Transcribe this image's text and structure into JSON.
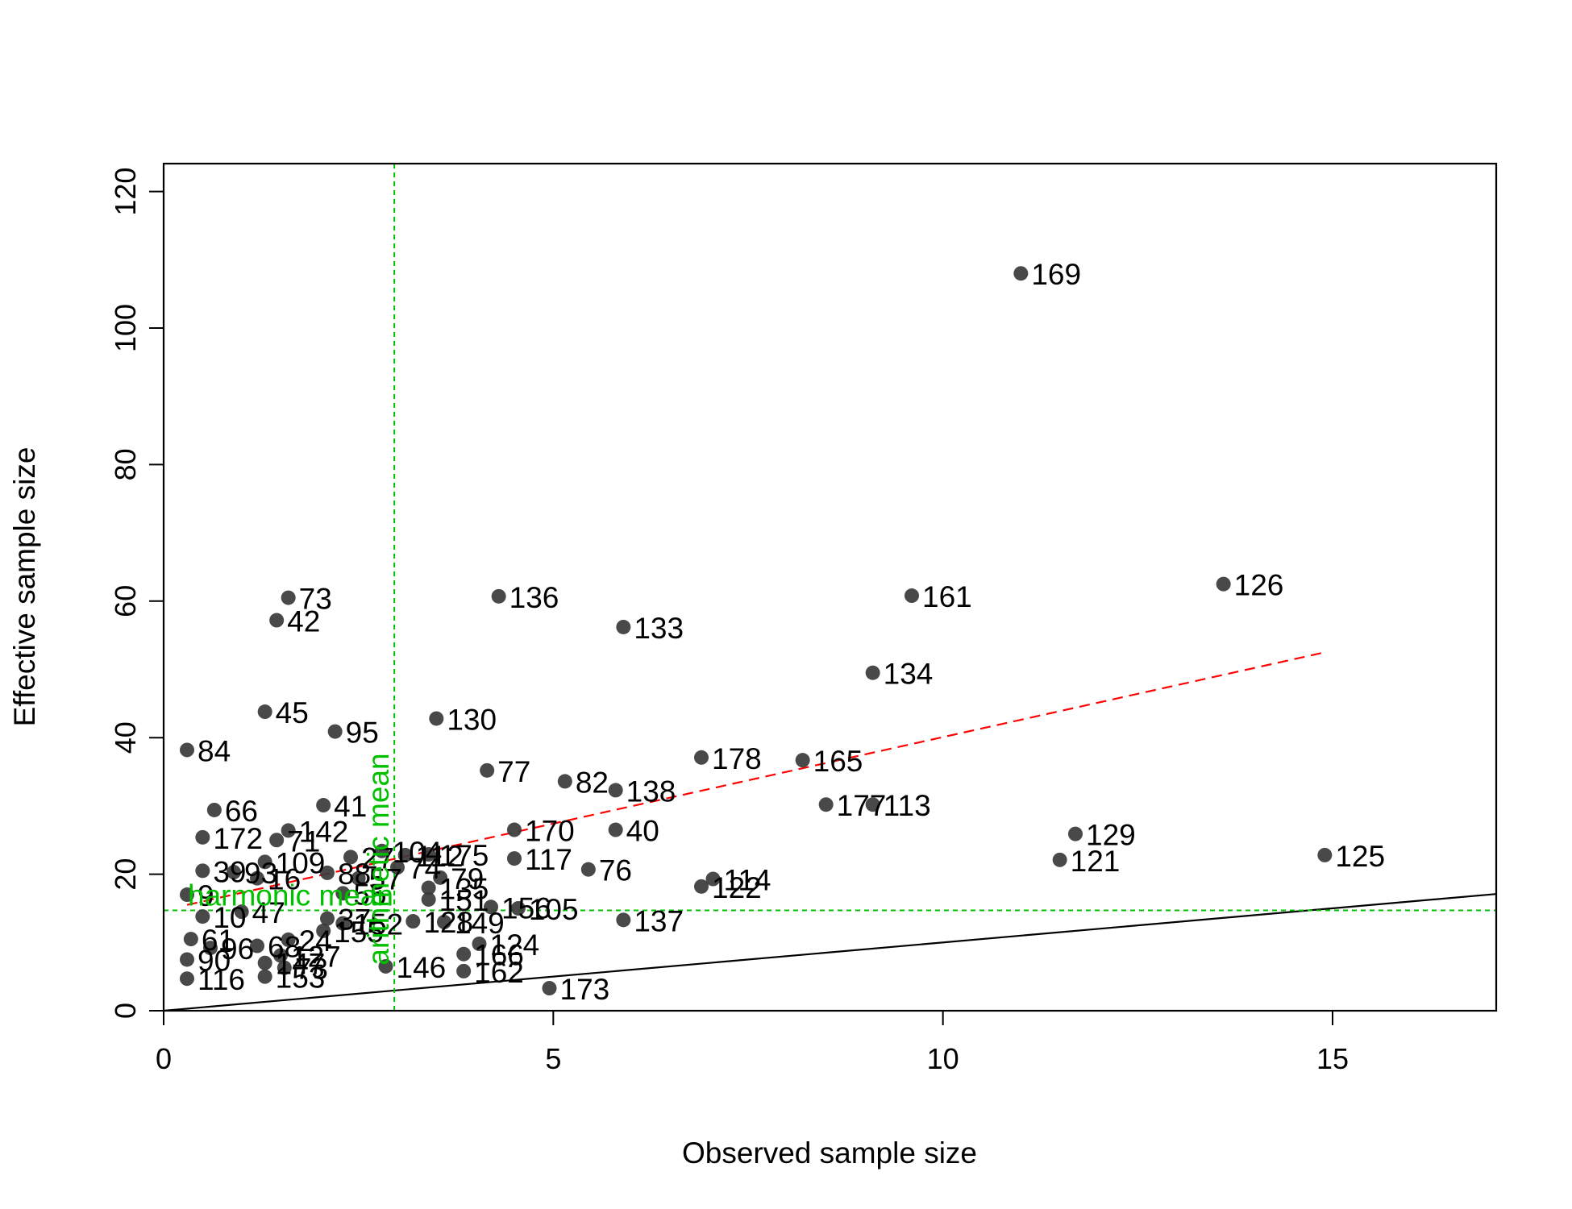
{
  "chart_data": {
    "type": "scatter",
    "title": "",
    "xlabel": "Observed sample size",
    "ylabel": "Effective sample size",
    "xlim": [
      0,
      17.1
    ],
    "ylim": [
      0,
      125
    ],
    "xticks": [
      0,
      5,
      10,
      15
    ],
    "yticks": [
      0,
      20,
      40,
      60,
      80,
      100,
      120
    ],
    "grid": false,
    "legend": "none",
    "colors": {
      "points": "#3a3a3a",
      "fit_line": "#ff0000",
      "reference": "#00c000",
      "identity": "#000000"
    },
    "points": [
      {
        "x": 11.0,
        "y": 108.0,
        "label": "169"
      },
      {
        "x": 1.6,
        "y": 60.5,
        "label": "73"
      },
      {
        "x": 4.3,
        "y": 60.7,
        "label": "136"
      },
      {
        "x": 9.6,
        "y": 60.8,
        "label": "161"
      },
      {
        "x": 13.6,
        "y": 62.5,
        "label": "126"
      },
      {
        "x": 1.45,
        "y": 57.2,
        "label": "42"
      },
      {
        "x": 5.9,
        "y": 56.2,
        "label": "133"
      },
      {
        "x": 9.1,
        "y": 49.5,
        "label": "134"
      },
      {
        "x": 1.3,
        "y": 43.8,
        "label": "45"
      },
      {
        "x": 3.5,
        "y": 42.8,
        "label": "130"
      },
      {
        "x": 2.2,
        "y": 40.9,
        "label": "95"
      },
      {
        "x": 0.3,
        "y": 38.2,
        "label": "84"
      },
      {
        "x": 6.9,
        "y": 37.1,
        "label": "178"
      },
      {
        "x": 8.2,
        "y": 36.7,
        "label": "165"
      },
      {
        "x": 4.15,
        "y": 35.2,
        "label": "77"
      },
      {
        "x": 5.15,
        "y": 33.6,
        "label": "82"
      },
      {
        "x": 5.8,
        "y": 32.3,
        "label": "138"
      },
      {
        "x": 8.5,
        "y": 30.2,
        "label": "177"
      },
      {
        "x": 9.1,
        "y": 30.2,
        "label": "113"
      },
      {
        "x": 2.05,
        "y": 30.1,
        "label": "41"
      },
      {
        "x": 0.65,
        "y": 29.4,
        "label": "66"
      },
      {
        "x": 4.5,
        "y": 26.5,
        "label": "170"
      },
      {
        "x": 5.8,
        "y": 26.5,
        "label": "40"
      },
      {
        "x": 1.6,
        "y": 26.4,
        "label": "142"
      },
      {
        "x": 11.7,
        "y": 25.9,
        "label": "129"
      },
      {
        "x": 0.5,
        "y": 25.4,
        "label": "172"
      },
      {
        "x": 1.45,
        "y": 25.0,
        "label": "71"
      },
      {
        "x": 2.8,
        "y": 23.4,
        "label": "104"
      },
      {
        "x": 3.1,
        "y": 22.8,
        "label": "112"
      },
      {
        "x": 3.4,
        "y": 22.9,
        "label": "175"
      },
      {
        "x": 14.9,
        "y": 22.8,
        "label": "125"
      },
      {
        "x": 4.5,
        "y": 22.3,
        "label": "117"
      },
      {
        "x": 2.4,
        "y": 22.5,
        "label": "27"
      },
      {
        "x": 11.5,
        "y": 22.1,
        "label": "121"
      },
      {
        "x": 1.3,
        "y": 21.8,
        "label": "109"
      },
      {
        "x": 3.0,
        "y": 21.0,
        "label": "74"
      },
      {
        "x": 5.45,
        "y": 20.7,
        "label": "76"
      },
      {
        "x": 2.1,
        "y": 20.2,
        "label": "88"
      },
      {
        "x": 0.5,
        "y": 20.5,
        "label": "39"
      },
      {
        "x": 0.9,
        "y": 20.3,
        "label": "93"
      },
      {
        "x": 1.2,
        "y": 19.4,
        "label": "16"
      },
      {
        "x": 2.5,
        "y": 19.4,
        "label": "57"
      },
      {
        "x": 3.55,
        "y": 19.5,
        "label": "79"
      },
      {
        "x": 7.05,
        "y": 19.3,
        "label": "114"
      },
      {
        "x": 6.9,
        "y": 18.2,
        "label": "122"
      },
      {
        "x": 3.4,
        "y": 18.0,
        "label": "135"
      },
      {
        "x": 0.3,
        "y": 17.0,
        "label": "9"
      },
      {
        "x": 2.3,
        "y": 17.2,
        "label": "55"
      },
      {
        "x": 3.4,
        "y": 16.3,
        "label": "151"
      },
      {
        "x": 4.2,
        "y": 15.2,
        "label": "156"
      },
      {
        "x": 4.55,
        "y": 15.0,
        "label": "105"
      },
      {
        "x": 0.5,
        "y": 13.8,
        "label": "10"
      },
      {
        "x": 1.0,
        "y": 14.5,
        "label": "47"
      },
      {
        "x": 2.1,
        "y": 13.5,
        "label": "37"
      },
      {
        "x": 2.3,
        "y": 12.8,
        "label": "152"
      },
      {
        "x": 3.2,
        "y": 13.1,
        "label": "128"
      },
      {
        "x": 3.6,
        "y": 13.0,
        "label": "149"
      },
      {
        "x": 5.9,
        "y": 13.3,
        "label": "137"
      },
      {
        "x": 2.05,
        "y": 11.7,
        "label": "155"
      },
      {
        "x": 0.35,
        "y": 10.5,
        "label": "61"
      },
      {
        "x": 1.6,
        "y": 10.4,
        "label": "24"
      },
      {
        "x": 4.05,
        "y": 9.8,
        "label": "124"
      },
      {
        "x": 1.2,
        "y": 9.5,
        "label": "68"
      },
      {
        "x": 0.6,
        "y": 9.2,
        "label": "96"
      },
      {
        "x": 3.85,
        "y": 8.3,
        "label": "166"
      },
      {
        "x": 1.5,
        "y": 8.1,
        "label": "127"
      },
      {
        "x": 0.3,
        "y": 7.5,
        "label": "90"
      },
      {
        "x": 1.3,
        "y": 7.0,
        "label": "147"
      },
      {
        "x": 2.85,
        "y": 6.5,
        "label": "146"
      },
      {
        "x": 3.85,
        "y": 5.8,
        "label": "162"
      },
      {
        "x": 1.55,
        "y": 6.3,
        "label": "73"
      },
      {
        "x": 0.3,
        "y": 4.7,
        "label": "116"
      },
      {
        "x": 1.3,
        "y": 5.0,
        "label": "153"
      },
      {
        "x": 4.95,
        "y": 3.3,
        "label": "173"
      }
    ],
    "fit_line": {
      "x": [
        0.3,
        14.9
      ],
      "y": [
        15.5,
        52.5
      ],
      "style": "dashed"
    },
    "identity_line": {
      "x": [
        0,
        17.1
      ],
      "y": [
        0,
        17.1
      ],
      "style": "solid"
    },
    "reference_lines": {
      "vertical": {
        "x": 2.96,
        "label": "arithmetic mean"
      },
      "horizontal": {
        "y": 14.7,
        "label": "harmonic mean"
      }
    }
  }
}
